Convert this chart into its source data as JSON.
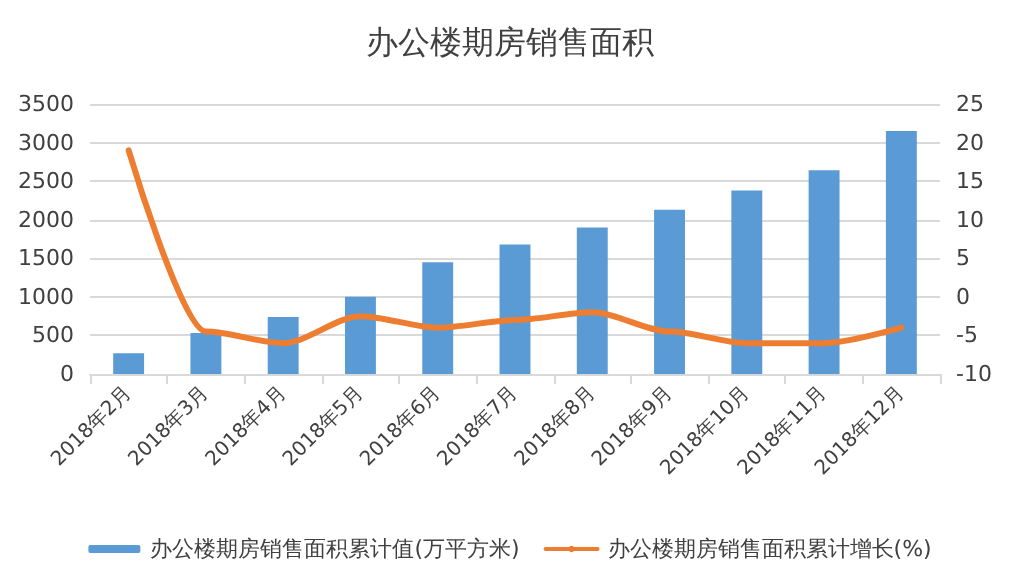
{
  "chart_data": {
    "type": "bar",
    "title": "办公楼期房销售面积",
    "categories": [
      "2018年2月",
      "2018年3月",
      "2018年4月",
      "2018年5月",
      "2018年6月",
      "2018年7月",
      "2018年8月",
      "2018年9月",
      "2018年10月",
      "2018年11月",
      "2018年12月"
    ],
    "series": [
      {
        "name": "办公楼期房销售面积累计值(万平方米)",
        "color": "#5b9bd5",
        "values": [
          270,
          530,
          740,
          1000,
          1450,
          1680,
          1900,
          2130,
          2380,
          2640,
          3150
        ]
      },
      {
        "name": "办公楼期房销售面积累计增长(%)",
        "type": "line",
        "axis": "y2",
        "color": "#ed7d31",
        "values": [
          19,
          -4.5,
          -6,
          -2.5,
          -4,
          -3,
          -2,
          -4.5,
          -6,
          -6,
          -4
        ]
      }
    ],
    "ylim": [
      0,
      3500
    ],
    "yticks": [
      0,
      500,
      1000,
      1500,
      2000,
      2500,
      3000,
      3500
    ],
    "y2lim": [
      -10,
      25
    ],
    "y2ticks": [
      -10,
      -5,
      0,
      5,
      10,
      15,
      20,
      25
    ],
    "grid": "y",
    "legend": "bottom",
    "marker": "none"
  }
}
